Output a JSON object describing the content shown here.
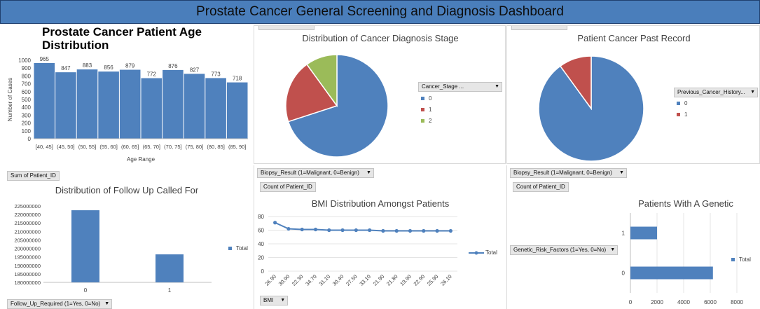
{
  "dashboard": {
    "title": "Prostate Cancer General Screening and Diagnosis Dashboard"
  },
  "colors": {
    "blue": "#4f81bd",
    "red": "#c0504d",
    "green": "#9bbb59",
    "banner": "#4a7ebb"
  },
  "icons": {
    "dropdown": "chevron-down-icon",
    "filter": "filter-icon"
  },
  "chart_data": [
    {
      "id": "age",
      "type": "bar",
      "title": "Prostate Cancer Patient Age Distribution",
      "xlabel": "Age Range",
      "ylabel": "Number of Cases",
      "categories": [
        "[40, 45]",
        "(45, 50]",
        "(50, 55]",
        "(55, 60]",
        "(60, 65]",
        "(65, 70]",
        "(70, 75]",
        "(75, 80]",
        "(80, 85]",
        "(85, 90]"
      ],
      "values": [
        965,
        847,
        883,
        856,
        879,
        772,
        876,
        827,
        773,
        718
      ],
      "labels": [
        "965",
        "847",
        "883",
        "856",
        "879",
        "772",
        "876",
        "827",
        "773",
        "718"
      ],
      "ylim": [
        0,
        1000
      ],
      "yticks": [
        0,
        100,
        200,
        300,
        400,
        500,
        600,
        700,
        800,
        900,
        1000
      ]
    },
    {
      "id": "stage",
      "type": "pie",
      "title": "Distribution of Cancer Diagnosis Stage",
      "filter_label": "Cancer_Stage ...",
      "categories": [
        "0",
        "1",
        "2"
      ],
      "values": [
        70,
        20,
        10
      ]
    },
    {
      "id": "past",
      "type": "pie",
      "title": "Patient Cancer Past Record",
      "filter_label": "Previous_Cancer_History...",
      "categories": [
        "0",
        "1"
      ],
      "values": [
        90,
        10
      ]
    },
    {
      "id": "followup",
      "type": "bar",
      "title": "Distribution of Follow Up Called For",
      "value_button": "Sum of Patient_ID",
      "axis_button": "Follow_Up_Required  (1=Yes, 0=No)",
      "legend": "Total",
      "categories": [
        "0",
        "1"
      ],
      "values": [
        222500000,
        196500000
      ],
      "ylim": [
        180000000,
        225000000
      ],
      "yticks": [
        180000000,
        185000000,
        190000000,
        195000000,
        200000000,
        205000000,
        210000000,
        215000000,
        220000000,
        225000000
      ]
    },
    {
      "id": "bmi",
      "type": "line",
      "title": "BMI Distribution Amongst Patients",
      "filter_button": "Biopsy_Result (1=Malignant,  0=Benign)",
      "value_button": "Count of Patient_ID",
      "axis_button": "BMI",
      "legend": "Total",
      "categories": [
        "26.90",
        "30.90",
        "22.30",
        "34.70",
        "31.10",
        "30.40",
        "27.50",
        "33.10",
        "21.90",
        "21.80",
        "19.90",
        "22.90",
        "25.90",
        "26.10"
      ],
      "values": [
        71,
        62,
        61,
        61,
        60,
        60,
        60,
        60,
        59,
        59,
        59,
        59,
        59,
        59
      ],
      "ylim": [
        0,
        80
      ],
      "yticks": [
        0,
        20,
        40,
        60,
        80
      ]
    },
    {
      "id": "genetic",
      "type": "bar",
      "orientation": "horizontal",
      "title": "Patients With A Genetic",
      "filter_button": "Biopsy_Result (1=Malignant,  0=Benign)",
      "value_button": "Count of Patient_ID",
      "axis_button": "Genetic_Risk_Factors (1=Yes, 0=No)",
      "legend": "Total",
      "categories": [
        "1",
        "0"
      ],
      "values": [
        2000,
        6200
      ],
      "xlim": [
        0,
        8000
      ],
      "xticks": [
        0,
        2000,
        4000,
        6000,
        8000
      ]
    }
  ]
}
